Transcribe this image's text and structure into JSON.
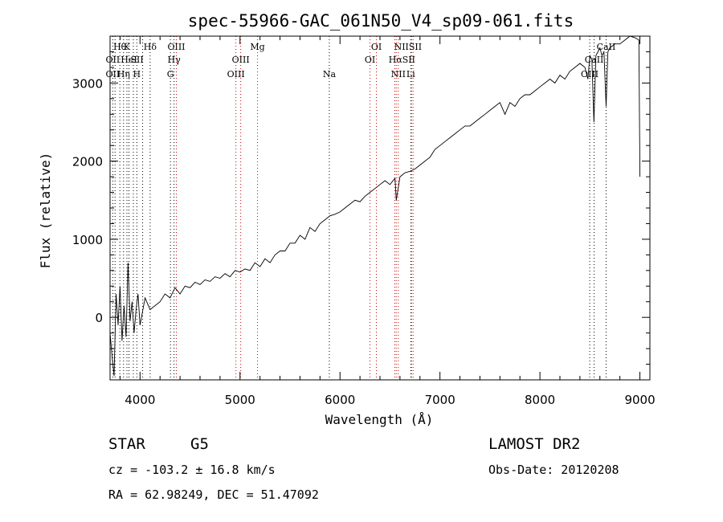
{
  "chart_data": {
    "type": "line",
    "title": "spec-55966-GAC_061N50_V4_sp09-061.fits",
    "xlabel": "Wavelength (Å)",
    "ylabel": "Flux (relative)",
    "xlim": [
      3700,
      9100
    ],
    "ylim": [
      -800,
      3600
    ],
    "x_ticks": [
      "4000",
      "5000",
      "6000",
      "7000",
      "8000",
      "9000"
    ],
    "y_ticks": [
      "0",
      "1000",
      "2000",
      "3000"
    ],
    "grid": false,
    "series": [
      {
        "x": [
          3700,
          3720,
          3740,
          3760,
          3780,
          3800,
          3820,
          3840,
          3860,
          3880,
          3900,
          3920,
          3940,
          3960,
          3980,
          4000,
          4050,
          4100,
          4150,
          4200,
          4250,
          4300,
          4350,
          4400,
          4450,
          4500,
          4550,
          4600,
          4650,
          4700,
          4750,
          4800,
          4850,
          4900,
          4950,
          5000,
          5050,
          5100,
          5150,
          5200,
          5250,
          5300,
          5350,
          5400,
          5450,
          5500,
          5550,
          5600,
          5650,
          5700,
          5750,
          5800,
          5850,
          5900,
          5950,
          6000,
          6050,
          6100,
          6150,
          6200,
          6250,
          6300,
          6350,
          6400,
          6450,
          6500,
          6550,
          6563,
          6600,
          6650,
          6700,
          6750,
          6800,
          6850,
          6900,
          6950,
          7000,
          7050,
          7100,
          7150,
          7200,
          7250,
          7300,
          7350,
          7400,
          7450,
          7500,
          7550,
          7600,
          7650,
          7700,
          7750,
          7800,
          7850,
          7900,
          7950,
          8000,
          8050,
          8100,
          8150,
          8200,
          8250,
          8300,
          8350,
          8400,
          8450,
          8480,
          8500,
          8520,
          8540,
          8560,
          8580,
          8600,
          8620,
          8640,
          8662,
          8680,
          8700,
          8750,
          8800,
          8850,
          8900,
          8950,
          8990,
          9000
        ],
        "y": [
          -200,
          -500,
          -750,
          300,
          -100,
          400,
          -300,
          150,
          -250,
          700,
          -50,
          200,
          -200,
          100,
          300,
          -100,
          250,
          100,
          150,
          200,
          300,
          250,
          380,
          300,
          400,
          380,
          450,
          420,
          480,
          460,
          520,
          500,
          560,
          520,
          600,
          580,
          620,
          600,
          700,
          650,
          750,
          700,
          800,
          850,
          850,
          950,
          950,
          1050,
          1000,
          1150,
          1100,
          1200,
          1250,
          1300,
          1320,
          1350,
          1400,
          1450,
          1500,
          1480,
          1550,
          1600,
          1650,
          1700,
          1750,
          1700,
          1780,
          1500,
          1800,
          1850,
          1870,
          1900,
          1950,
          2000,
          2050,
          2150,
          2200,
          2250,
          2300,
          2350,
          2400,
          2450,
          2450,
          2500,
          2550,
          2600,
          2650,
          2700,
          2750,
          2600,
          2750,
          2700,
          2800,
          2850,
          2850,
          2900,
          2950,
          3000,
          3050,
          3000,
          3100,
          3050,
          3150,
          3200,
          3250,
          3200,
          3050,
          3350,
          3300,
          2500,
          3350,
          3400,
          3450,
          3350,
          3400,
          2700,
          3400,
          3450,
          3500,
          3500,
          3550,
          3600,
          3580,
          3550,
          1800
        ]
      }
    ],
    "emission_lines": [
      {
        "x": 3798,
        "label": "Hθ",
        "row": 0
      },
      {
        "x": 3869,
        "label": "K",
        "row": 0
      },
      {
        "x": 4101,
        "label": "Hδ",
        "row": 0
      },
      {
        "x": 4363,
        "label": "OIII",
        "row": 0
      },
      {
        "x": 5175,
        "label": "Mg",
        "row": 0
      },
      {
        "x": 6364,
        "label": "OI",
        "row": 0
      },
      {
        "x": 6680,
        "label": "NIISII",
        "row": 0
      },
      {
        "x": 8662,
        "label": "CaII",
        "row": 0
      },
      {
        "x": 3727,
        "label": "OII",
        "row": 1
      },
      {
        "x": 3889,
        "label": "HeI",
        "row": 1
      },
      {
        "x": 3970,
        "label": "SII",
        "row": 1
      },
      {
        "x": 4340,
        "label": "Hγ",
        "row": 1
      },
      {
        "x": 5007,
        "label": "OIII",
        "row": 1
      },
      {
        "x": 6300,
        "label": "OI",
        "row": 1
      },
      {
        "x": 6620,
        "label": "HαSII",
        "row": 1
      },
      {
        "x": 8542,
        "label": "CaII",
        "row": 1
      },
      {
        "x": 3727,
        "label": "OII",
        "row": 2
      },
      {
        "x": 3835,
        "label": "Hη",
        "row": 2
      },
      {
        "x": 3968,
        "label": "H",
        "row": 2
      },
      {
        "x": 4304,
        "label": "G",
        "row": 2
      },
      {
        "x": 4959,
        "label": "OIII",
        "row": 2
      },
      {
        "x": 5893,
        "label": "Na",
        "row": 2
      },
      {
        "x": 6583,
        "label": "NII",
        "row": 2
      },
      {
        "x": 6708,
        "label": "Li",
        "row": 2
      },
      {
        "x": 8498,
        "label": "OIII",
        "row": 2
      }
    ],
    "line_markers": [
      {
        "x": 3727,
        "color": "#000000"
      },
      {
        "x": 3750,
        "color": "#000000"
      },
      {
        "x": 3798,
        "color": "#000000"
      },
      {
        "x": 3835,
        "color": "#000000"
      },
      {
        "x": 3869,
        "color": "#000000"
      },
      {
        "x": 3889,
        "color": "#000000"
      },
      {
        "x": 3933,
        "color": "#000000"
      },
      {
        "x": 3968,
        "color": "#000000"
      },
      {
        "x": 4026,
        "color": "#000000"
      },
      {
        "x": 4101,
        "color": "#000000"
      },
      {
        "x": 4304,
        "color": "#000000"
      },
      {
        "x": 4340,
        "color": "#000000"
      },
      {
        "x": 4363,
        "color": "#cc0000"
      },
      {
        "x": 4959,
        "color": "#cc0000"
      },
      {
        "x": 5007,
        "color": "#cc0000"
      },
      {
        "x": 5175,
        "color": "#cc0000"
      },
      {
        "x": 5893,
        "color": "#000000"
      },
      {
        "x": 6300,
        "color": "#cc0000"
      },
      {
        "x": 6364,
        "color": "#cc0000"
      },
      {
        "x": 6548,
        "color": "#cc0000"
      },
      {
        "x": 6563,
        "color": "#cc0000"
      },
      {
        "x": 6583,
        "color": "#cc0000"
      },
      {
        "x": 6708,
        "color": "#000000"
      },
      {
        "x": 6716,
        "color": "#cc0000"
      },
      {
        "x": 6731,
        "color": "#cc0000"
      },
      {
        "x": 8498,
        "color": "#000000"
      },
      {
        "x": 8542,
        "color": "#000000"
      },
      {
        "x": 8662,
        "color": "#000000"
      }
    ]
  },
  "info": {
    "class_label": "STAR",
    "subclass": "G5",
    "survey": "LAMOST DR2",
    "redshift": "cz = -103.2 ± 16.8 km/s",
    "obs_date": "Obs-Date: 20120208",
    "coords": "RA =  62.98249, DEC =  51.47092"
  }
}
